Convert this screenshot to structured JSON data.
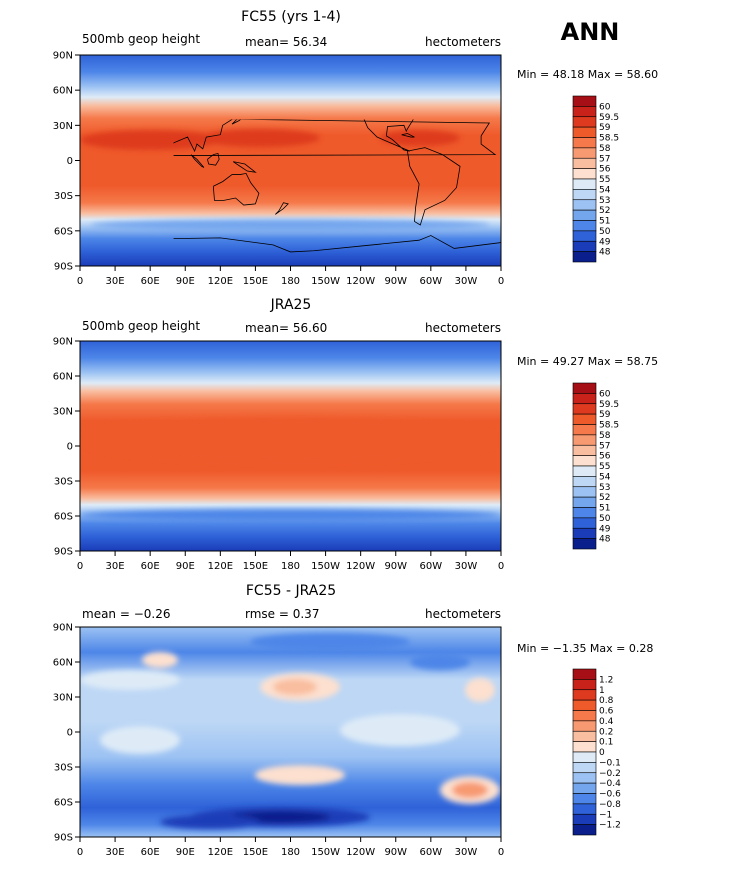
{
  "season": "ANN",
  "panels": [
    {
      "title": "FC55 (yrs 1-4)",
      "left_label": "500mb geop height",
      "center_label": "mean=  56.34",
      "right_label": "hectometers",
      "minmax": "Min =  48.18 Max =  58.60",
      "field": "abs",
      "colorbar": {
        "labels": [
          "60",
          "59.5",
          "59",
          "58.5",
          "58",
          "57",
          "56",
          "55",
          "54",
          "53",
          "52",
          "51",
          "50",
          "49",
          "48"
        ],
        "colors": [
          "#a50f15",
          "#c8221b",
          "#de3a1f",
          "#ef5a2b",
          "#f5794a",
          "#f79a72",
          "#f9bd9f",
          "#fde0cf",
          "#deebf7",
          "#bdd7f5",
          "#9cc2f3",
          "#74a6ee",
          "#4d86e8",
          "#2f62d8",
          "#1a3cb8",
          "#0a1f8c"
        ]
      }
    },
    {
      "title": "JRA25",
      "left_label": "500mb geop height",
      "center_label": "mean=  56.60",
      "right_label": "hectometers",
      "minmax": "Min =  49.27 Max =  58.75",
      "field": "abs",
      "colorbar": {
        "labels": [
          "60",
          "59.5",
          "59",
          "58.5",
          "58",
          "57",
          "56",
          "55",
          "54",
          "53",
          "52",
          "51",
          "50",
          "49",
          "48"
        ],
        "colors": [
          "#a50f15",
          "#c8221b",
          "#de3a1f",
          "#ef5a2b",
          "#f5794a",
          "#f79a72",
          "#f9bd9f",
          "#fde0cf",
          "#deebf7",
          "#bdd7f5",
          "#9cc2f3",
          "#74a6ee",
          "#4d86e8",
          "#2f62d8",
          "#1a3cb8",
          "#0a1f8c"
        ]
      }
    },
    {
      "title": "FC55 - JRA25",
      "left_label": "mean =  −0.26",
      "center_label": "rmse =   0.37",
      "right_label": "hectometers",
      "minmax": "Min =  −1.35 Max =   0.28",
      "field": "diff",
      "colorbar": {
        "labels": [
          "1.2",
          "1",
          "0.8",
          "0.6",
          "0.4",
          "0.2",
          "0.1",
          "0",
          "−0.1",
          "−0.2",
          "−0.4",
          "−0.6",
          "−0.8",
          "−1",
          "−1.2"
        ],
        "colors": [
          "#a50f15",
          "#c8221b",
          "#de3a1f",
          "#ef5a2b",
          "#f5794a",
          "#f79a72",
          "#f9bd9f",
          "#fde0cf",
          "#deebf7",
          "#bdd7f5",
          "#9cc2f3",
          "#74a6ee",
          "#4d86e8",
          "#2f62d8",
          "#1a3cb8",
          "#0a1f8c"
        ]
      }
    }
  ],
  "chart_data": [
    {
      "type": "heatmap",
      "title": "FC55 (yrs 1-4)",
      "variable": "500mb geop height",
      "units": "hectometers",
      "mean": 56.34,
      "min": 48.18,
      "max": 58.6,
      "x_ticks": [
        "0",
        "30E",
        "60E",
        "90E",
        "120E",
        "150E",
        "180",
        "150W",
        "120W",
        "90W",
        "60W",
        "30W",
        "0"
      ],
      "y_ticks": [
        "90N",
        "60N",
        "30N",
        "0",
        "30S",
        "60S",
        "90S"
      ],
      "contour_levels": [
        48,
        49,
        50,
        51,
        52,
        53,
        54,
        55,
        56,
        57,
        58,
        58.5,
        59,
        59.5,
        60
      ]
    },
    {
      "type": "heatmap",
      "title": "JRA25",
      "variable": "500mb geop height",
      "units": "hectometers",
      "mean": 56.6,
      "min": 49.27,
      "max": 58.75,
      "x_ticks": [
        "0",
        "30E",
        "60E",
        "90E",
        "120E",
        "150E",
        "180",
        "150W",
        "120W",
        "90W",
        "60W",
        "30W",
        "0"
      ],
      "y_ticks": [
        "90N",
        "60N",
        "30N",
        "0",
        "30S",
        "60S",
        "90S"
      ],
      "contour_levels": [
        48,
        49,
        50,
        51,
        52,
        53,
        54,
        55,
        56,
        57,
        58,
        58.5,
        59,
        59.5,
        60
      ]
    },
    {
      "type": "heatmap",
      "title": "FC55 - JRA25",
      "units": "hectometers",
      "mean": -0.26,
      "rmse": 0.37,
      "min": -1.35,
      "max": 0.28,
      "x_ticks": [
        "0",
        "30E",
        "60E",
        "90E",
        "120E",
        "150E",
        "180",
        "150W",
        "120W",
        "90W",
        "60W",
        "30W",
        "0"
      ],
      "y_ticks": [
        "90N",
        "60N",
        "30N",
        "0",
        "30S",
        "60S",
        "90S"
      ],
      "contour_levels": [
        -1.2,
        -1,
        -0.8,
        -0.6,
        -0.4,
        -0.2,
        -0.1,
        0,
        0.1,
        0.2,
        0.4,
        0.6,
        0.8,
        1,
        1.2
      ]
    }
  ]
}
